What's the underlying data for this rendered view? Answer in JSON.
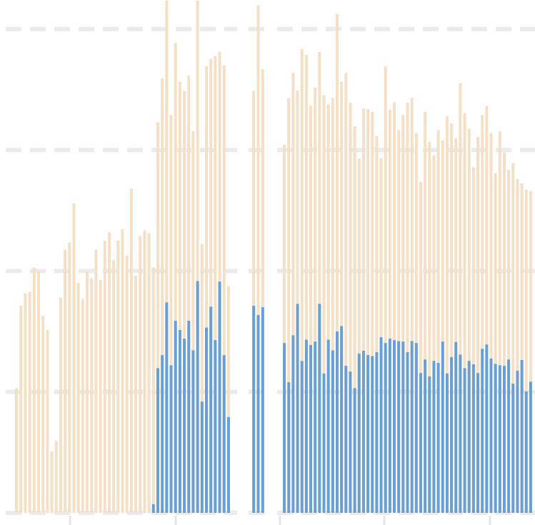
{
  "chart_data": [
    {
      "type": "bar",
      "ylim": [
        0,
        106
      ],
      "yticks": [
        0,
        25,
        50,
        75,
        100
      ],
      "grid": true,
      "categories": [
        null,
        null,
        null,
        null,
        null,
        null,
        null,
        null,
        null,
        null,
        null,
        null,
        null,
        null,
        null,
        null,
        null,
        null,
        null,
        null,
        null,
        null,
        null,
        null,
        null,
        null,
        null,
        null,
        null,
        null,
        null,
        null,
        null,
        null,
        null,
        null,
        null,
        null,
        null,
        null,
        null,
        null,
        null,
        null,
        null,
        null,
        null,
        null,
        null
      ],
      "series": [
        {
          "color": "#f3e0c6",
          "values": [
            25.8,
            42.8,
            45.4,
            45.7,
            50.7,
            49.9,
            40.7,
            37.8,
            12.7,
            14.9,
            44.5,
            54.4,
            55.9,
            64.0,
            47.5,
            44.2,
            49.9,
            48.5,
            54.4,
            48.1,
            56.2,
            58.0,
            52.2,
            56.3,
            58.6,
            53.2,
            67.0,
            49.0,
            57.2,
            58.4,
            57.8,
            50.7,
            80.7,
            89.8,
            105.9,
            82.3,
            97.1,
            89.1,
            87.2,
            90.4,
            78.9,
            105.9,
            55.6,
            92.3,
            93.8,
            94.4,
            95.3,
            92.5,
            46.9
          ]
        },
        {
          "color": "#6a9fd4",
          "values": [
            null,
            null,
            null,
            null,
            null,
            null,
            null,
            null,
            null,
            null,
            null,
            null,
            null,
            null,
            null,
            null,
            null,
            null,
            null,
            null,
            null,
            null,
            null,
            null,
            null,
            null,
            null,
            null,
            null,
            null,
            null,
            1.8,
            29.9,
            32.6,
            43.5,
            30.5,
            39.7,
            37.8,
            36.0,
            39.7,
            33.6,
            47.9,
            23.0,
            38.3,
            42.6,
            35.7,
            47.8,
            32.6,
            19.8
          ]
        }
      ]
    },
    {
      "type": "bar",
      "ylim": [
        0,
        106
      ],
      "yticks": [
        0,
        25,
        50,
        75,
        100
      ],
      "grid": true,
      "categories": [
        null,
        null,
        null
      ],
      "series": [
        {
          "color": "#f3e0c6",
          "values": [
            87.2,
            104.9,
            91.7
          ]
        },
        {
          "color": "#6a9fd4",
          "values": [
            42.8,
            40.9,
            42.5
          ]
        }
      ]
    },
    {
      "type": "bar",
      "ylim": [
        0,
        106
      ],
      "yticks": [
        0,
        25,
        50,
        75,
        100
      ],
      "grid": true,
      "categories": [
        null,
        null,
        null,
        null,
        null,
        null,
        null,
        null,
        null,
        null,
        null,
        null,
        null,
        null,
        null,
        null,
        null,
        null,
        null,
        null,
        null,
        null,
        null,
        null,
        null,
        null,
        null,
        null,
        null,
        null,
        null,
        null,
        null,
        null,
        null,
        null,
        null,
        null,
        null,
        null,
        null,
        null,
        null,
        null,
        null,
        null,
        null,
        null,
        null,
        null,
        null,
        null,
        null,
        null,
        null,
        null,
        null
      ],
      "series": [
        {
          "color": "#f3e0c6",
          "values": [
            76.1,
            85.7,
            91.0,
            87.3,
            95.9,
            94.7,
            84.2,
            87.9,
            95.3,
            86.3,
            84.4,
            85.7,
            103.1,
            89.1,
            90.9,
            84.8,
            79.9,
            73.2,
            83.6,
            83.5,
            82.9,
            77.9,
            73.3,
            92.3,
            83.3,
            84.8,
            79.1,
            82.2,
            84.8,
            85.8,
            78.5,
            68.4,
            82.9,
            76.7,
            73.9,
            79.1,
            77.0,
            82.0,
            80.5,
            77.4,
            88.8,
            82.6,
            79.4,
            71.4,
            77.7,
            82.2,
            84.1,
            78.5,
            70.2,
            78.9,
            74.5,
            70.9,
            72.3,
            69.0,
            68.1,
            66.8,
            66.5
          ]
        },
        {
          "color": "#6a9fd4",
          "values": [
            35.1,
            27.0,
            36.7,
            43.2,
            31.4,
            35.8,
            34.7,
            35.4,
            43.2,
            28.8,
            35.8,
            33.6,
            37.5,
            38.6,
            30.4,
            29.2,
            25.8,
            32.9,
            33.5,
            32.6,
            32.4,
            33.2,
            36.3,
            35.1,
            36.0,
            35.7,
            35.5,
            35.4,
            33.2,
            35.5,
            35.1,
            28.9,
            31.7,
            28.2,
            31.4,
            31.0,
            35.4,
            28.8,
            32.2,
            35.3,
            32.7,
            29.9,
            31.4,
            30.7,
            28.9,
            33.9,
            34.8,
            31.9,
            30.8,
            30.5,
            30.4,
            31.7,
            26.7,
            29.4,
            31.6,
            25.1,
            27.1
          ]
        }
      ]
    }
  ]
}
